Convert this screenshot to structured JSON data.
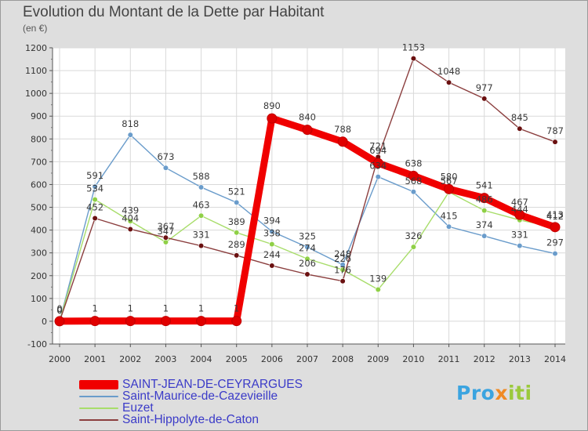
{
  "chart_data": {
    "type": "line",
    "title": "Evolution du Montant de la Dette par Habitant",
    "subtitle": "(en €)",
    "xlabel": "",
    "ylabel": "",
    "ylim": [
      -100,
      1200
    ],
    "yticks": [
      -100,
      0,
      100,
      200,
      300,
      400,
      500,
      600,
      700,
      800,
      900,
      1000,
      1100,
      1200
    ],
    "x": [
      "2000",
      "2001",
      "2002",
      "2003",
      "2004",
      "2005",
      "2006",
      "2007",
      "2008",
      "2009",
      "2010",
      "2011",
      "2012",
      "2013",
      "2014"
    ],
    "grid": true,
    "legend_position": "bottom-left",
    "series": [
      {
        "name": "Saint-Maurice-de-Cazevieille",
        "color": "#6a9ccb",
        "marker": "#6a9ccb",
        "values": [
          0,
          591,
          818,
          673,
          588,
          521,
          394,
          325,
          248,
          634,
          568,
          415,
          374,
          331,
          297
        ]
      },
      {
        "name": "Euzet",
        "color": "#a8dd6a",
        "marker": "#8fd046",
        "values": [
          0,
          534,
          439,
          347,
          463,
          389,
          338,
          274,
          226,
          139,
          326,
          567,
          486,
          444,
          412
        ]
      },
      {
        "name": "Saint-Hippolyte-de-Caton",
        "color": "#8b3e3e",
        "marker": "#6a1010",
        "values": [
          0,
          452,
          404,
          367,
          331,
          289,
          244,
          206,
          176,
          721,
          1153,
          1048,
          977,
          845,
          787
        ]
      },
      {
        "name": "SAINT-JEAN-DE-CEYRARGUES",
        "color": "#f00000",
        "marker": "#e00000",
        "values": [
          0,
          1,
          1,
          1,
          1,
          1,
          890,
          840,
          788,
          694,
          638,
          580,
          541,
          467,
          413
        ]
      }
    ]
  },
  "legend": {
    "items": [
      {
        "label": "SAINT-JEAN-DE-CEYRARGUES",
        "color": "#f00000"
      },
      {
        "label": "Saint-Maurice-de-Cazevieille",
        "color": "#6a9ccb"
      },
      {
        "label": "Euzet",
        "color": "#a8dd6a"
      },
      {
        "label": "Saint-Hippolyte-de-Caton",
        "color": "#8b3e3e"
      }
    ]
  },
  "logo": {
    "p1": "Pro",
    "p2": "x",
    "p3": "iti"
  }
}
